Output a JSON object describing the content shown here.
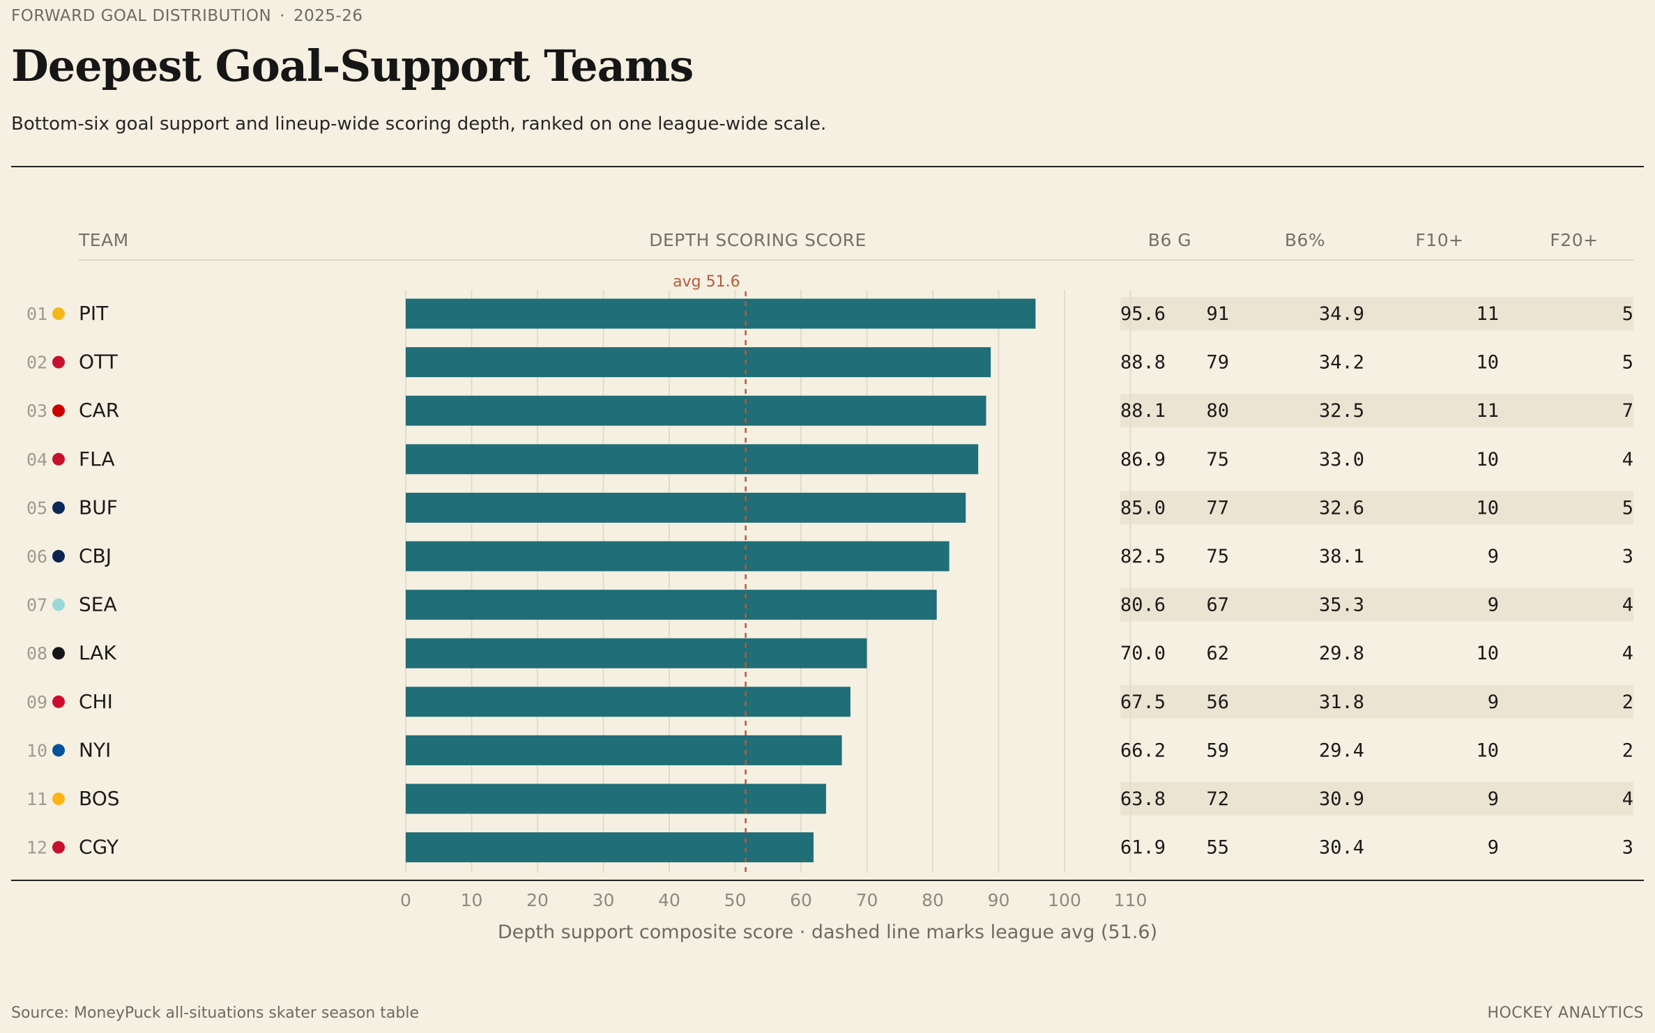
{
  "header": {
    "eyebrow": "FORWARD GOAL DISTRIBUTION",
    "eyebrow_sep": "·",
    "season": "2025-26",
    "title": "Deepest Goal-Support Teams",
    "subtitle": "Bottom-six goal support and lineup-wide scoring depth, ranked on one league-wide scale."
  },
  "columns": {
    "team": "TEAM",
    "score": "DEPTH SCORING SCORE",
    "b6g": "B6 G",
    "b6pct": "B6%",
    "f10": "F10+",
    "f20": "F20+"
  },
  "footer": {
    "source": "Source: MoneyPuck all-situations skater season table",
    "brand": "HOCKEY ANALYTICS"
  },
  "colors": {
    "bar": "#1f6e78",
    "avg_line": "#b8593a",
    "stripe": "#ece4d2",
    "grid": "#e3dccb"
  },
  "chart_data": {
    "type": "bar",
    "orientation": "horizontal",
    "xlabel": "Depth support composite score  ·  dashed line marks league avg (51.6)",
    "xlim": [
      0,
      110
    ],
    "xticks": [
      0,
      10,
      20,
      30,
      40,
      50,
      60,
      70,
      80,
      90,
      100,
      110
    ],
    "avg": 51.6,
    "avg_label": "avg 51.6",
    "rows": [
      {
        "rank": "01",
        "team": "PIT",
        "dot": "#f7b71c",
        "score": 95.6,
        "score_label": "95.6",
        "b6g": "91",
        "b6pct": "34.9",
        "f10": "11",
        "f20": "5"
      },
      {
        "rank": "02",
        "team": "OTT",
        "dot": "#c8102e",
        "score": 88.8,
        "score_label": "88.8",
        "b6g": "79",
        "b6pct": "34.2",
        "f10": "10",
        "f20": "5"
      },
      {
        "rank": "03",
        "team": "CAR",
        "dot": "#cc0000",
        "score": 88.1,
        "score_label": "88.1",
        "b6g": "80",
        "b6pct": "32.5",
        "f10": "11",
        "f20": "7"
      },
      {
        "rank": "04",
        "team": "FLA",
        "dot": "#c8102e",
        "score": 86.9,
        "score_label": "86.9",
        "b6g": "75",
        "b6pct": "33.0",
        "f10": "10",
        "f20": "4"
      },
      {
        "rank": "05",
        "team": "BUF",
        "dot": "#0b2858",
        "score": 85.0,
        "score_label": "85.0",
        "b6g": "77",
        "b6pct": "32.6",
        "f10": "10",
        "f20": "5"
      },
      {
        "rank": "06",
        "team": "CBJ",
        "dot": "#0c2450",
        "score": 82.5,
        "score_label": "82.5",
        "b6g": "75",
        "b6pct": "38.1",
        "f10": "9",
        "f20": "3"
      },
      {
        "rank": "07",
        "team": "SEA",
        "dot": "#99d9d9",
        "score": 80.6,
        "score_label": "80.6",
        "b6g": "67",
        "b6pct": "35.3",
        "f10": "9",
        "f20": "4"
      },
      {
        "rank": "08",
        "team": "LAK",
        "dot": "#161616",
        "score": 70.0,
        "score_label": "70.0",
        "b6g": "62",
        "b6pct": "29.8",
        "f10": "10",
        "f20": "4"
      },
      {
        "rank": "09",
        "team": "CHI",
        "dot": "#cf0a2c",
        "score": 67.5,
        "score_label": "67.5",
        "b6g": "56",
        "b6pct": "31.8",
        "f10": "9",
        "f20": "2"
      },
      {
        "rank": "10",
        "team": "NYI",
        "dot": "#00539b",
        "score": 66.2,
        "score_label": "66.2",
        "b6g": "59",
        "b6pct": "29.4",
        "f10": "10",
        "f20": "2"
      },
      {
        "rank": "11",
        "team": "BOS",
        "dot": "#fcb514",
        "score": 63.8,
        "score_label": "63.8",
        "b6g": "72",
        "b6pct": "30.9",
        "f10": "9",
        "f20": "4"
      },
      {
        "rank": "12",
        "team": "CGY",
        "dot": "#c8102e",
        "score": 61.9,
        "score_label": "61.9",
        "b6g": "55",
        "b6pct": "30.4",
        "f10": "9",
        "f20": "3"
      }
    ]
  }
}
